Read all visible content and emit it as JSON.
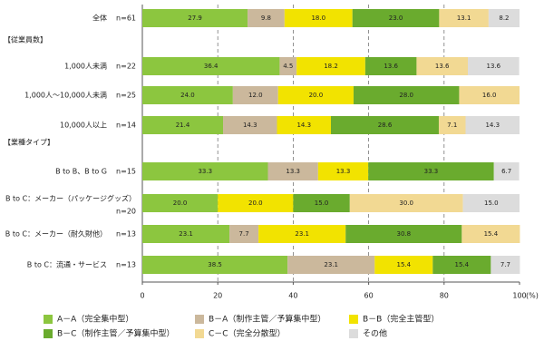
{
  "chart_data": {
    "type": "stacked-barh",
    "categories": [
      "全体",
      "1,000人未満",
      "1,000人～10,000人未満",
      "10,000人以上",
      "B to B、B to G",
      "B to C：メーカー（パッケージグッズ）",
      "B to C：メーカー（耐久財他）",
      "B to C：流通・サービス"
    ],
    "n_labels": [
      "n=61",
      "n=22",
      "n=25",
      "n=14",
      "n=15",
      "n=20",
      "n=13",
      "n=13"
    ],
    "groups": [
      {
        "label": "【従業員数】",
        "start": 1
      },
      {
        "label": "【業種タイプ】",
        "start": 4
      }
    ],
    "series": [
      {
        "name": "A－A（完全集中型）",
        "color": "#8cc63f",
        "values": [
          27.9,
          36.4,
          24.0,
          21.4,
          33.3,
          20.0,
          23.1,
          38.5
        ],
        "value_labels": [
          "27.9",
          "36.4",
          "24.0",
          "21.4",
          "33.3",
          "20.0",
          "23.1",
          "38.5"
        ]
      },
      {
        "name": "B－A（制作主管／予算集中型）",
        "color": "#cbb89c",
        "values": [
          9.8,
          4.5,
          12.0,
          14.3,
          13.3,
          null,
          7.7,
          23.1
        ],
        "value_labels": [
          "9.8",
          "4.5",
          "12.0",
          "14.3",
          "13.3",
          null,
          "7.7",
          "23.1"
        ]
      },
      {
        "name": "B－B（完全主管型）",
        "color": "#f2e300",
        "values": [
          18.0,
          18.2,
          20.0,
          14.3,
          13.3,
          20.0,
          23.1,
          15.4
        ],
        "value_labels": [
          "18.0",
          "18.2",
          "20.0",
          "14.3",
          "13.3",
          "20.0",
          "23.1",
          "15.4"
        ]
      },
      {
        "name": "B－C（制作主管／予算集中型）",
        "color": "#6aab2e",
        "values": [
          23.0,
          13.6,
          28.0,
          28.6,
          33.3,
          15.0,
          30.8,
          15.4
        ],
        "value_labels": [
          "23.0",
          "13.6",
          "28.0",
          "28.6",
          "33.3",
          "15.0",
          "30.8",
          "15.4"
        ]
      },
      {
        "name": "C－C（完全分散型）",
        "color": "#f2d993",
        "values": [
          13.1,
          13.6,
          16.0,
          7.1,
          null,
          30.0,
          15.4,
          null
        ],
        "value_labels": [
          "13.1",
          "13.6",
          "16.0",
          "7.1",
          null,
          "30.0",
          "15.4",
          null
        ]
      },
      {
        "name": "その他",
        "color": "#dcdcdc",
        "values": [
          8.2,
          13.6,
          null,
          14.3,
          6.7,
          15.0,
          null,
          7.7
        ],
        "value_labels": [
          "8.2",
          "13.6",
          null,
          "14.3",
          "6.7",
          "15.0",
          null,
          "7.7"
        ]
      }
    ],
    "xlim": [
      0,
      100
    ],
    "xticks": [
      0,
      20,
      40,
      60,
      80,
      100
    ],
    "x_unit": "(%)",
    "grid": true
  }
}
